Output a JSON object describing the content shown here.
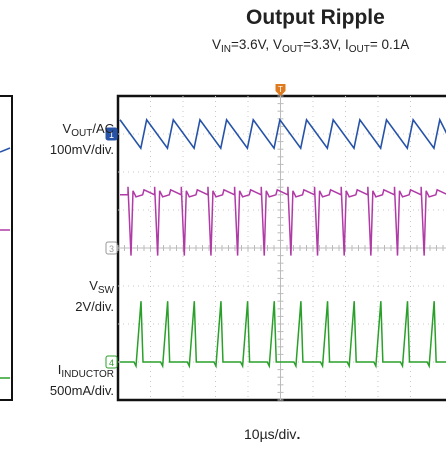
{
  "chart_data": {
    "type": "line",
    "title": "Output Ripple",
    "subtitle": {
      "vin_prefix": "V",
      "vin_sub": "IN",
      "vin_value": "=3.6V,",
      "vout_prefix": "V",
      "vout_sub": "OUT",
      "vout_value": "=3.3V,",
      "iout_prefix": "I",
      "iout_sub": "OUT",
      "iout_value": "= 0.1A"
    },
    "xlabel": "10µs/div",
    "xlabel_period": ".",
    "grid": true,
    "divisions": {
      "x": 10,
      "y": 8
    },
    "switching_period_div": 0.82,
    "channels": [
      {
        "marker": "1",
        "name_prefix": "V",
        "name_sub": "OUT",
        "name_suffix": "/AC",
        "scale": "100mV/div.",
        "color": "#2653a8",
        "waveform": "sawtooth",
        "offset_div": 3.0,
        "amplitude_div": 0.75
      },
      {
        "marker": "",
        "name_prefix": "",
        "name_sub": "",
        "name_suffix": "",
        "scale": "",
        "color": "#b03aa6",
        "waveform": "switch-node",
        "offset_div": 1.4,
        "amplitude_div": 1.6
      },
      {
        "marker": "3",
        "name_prefix": "V",
        "name_sub": "SW",
        "name_suffix": "",
        "scale": "2V/div.",
        "color": "#9a9a9a",
        "waveform": "reference",
        "offset_div": 0.0,
        "amplitude_div": 0.0
      },
      {
        "marker": "4",
        "name_prefix": "I",
        "name_sub": "INDUCTOR",
        "name_suffix": "",
        "scale": "500mA/div.",
        "color": "#2aa02a",
        "waveform": "pulse",
        "offset_div": -3.0,
        "amplitude_div": 1.6
      }
    ],
    "trigger_marker": "T"
  }
}
